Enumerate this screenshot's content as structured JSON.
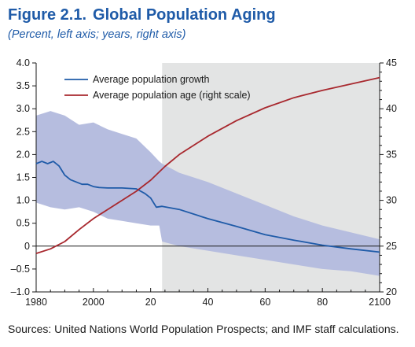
{
  "figure": {
    "label": "Figure 2.1.",
    "title": "Global Population Aging",
    "subtitle": "(Percent, left axis; years, right axis)",
    "source": "Sources: United Nations World Population Prospects; and IMF staff calculations."
  },
  "chart_data": {
    "type": "line",
    "x_ticks": [
      1980,
      2000,
      2020,
      2040,
      2060,
      2080,
      2100
    ],
    "x_tick_labels": [
      "1980",
      "2000",
      "20",
      "40",
      "60",
      "80",
      "2100"
    ],
    "xlim": [
      1980,
      2100
    ],
    "y_left": {
      "lim": [
        -1.0,
        4.0
      ],
      "ticks": [
        -1.0,
        -0.5,
        0,
        0.5,
        1.0,
        1.5,
        2.0,
        2.5,
        3.0,
        3.5,
        4.0
      ],
      "tick_labels": [
        "–1.0",
        "–0.5",
        "0",
        "0.5",
        "1.0",
        "1.5",
        "2.0",
        "2.5",
        "3.0",
        "3.5",
        "4.0"
      ]
    },
    "y_right": {
      "lim": [
        20,
        45
      ],
      "ticks": [
        20,
        25,
        30,
        35,
        40,
        45
      ],
      "tick_labels": [
        "20",
        "25",
        "30",
        "35",
        "40",
        "45"
      ]
    },
    "projection_shading": {
      "x_start": 2024,
      "x_end": 2100,
      "color": "#e3e4e4"
    },
    "zero_line": true,
    "legend_position": "top-left",
    "band": {
      "color": "#b6bddf",
      "x": [
        1980,
        1985,
        1990,
        1995,
        2000,
        2005,
        2010,
        2015,
        2020,
        2023,
        2024,
        2030,
        2040,
        2050,
        2060,
        2070,
        2080,
        2090,
        2100
      ],
      "upper": [
        2.85,
        2.95,
        2.85,
        2.65,
        2.7,
        2.55,
        2.45,
        2.35,
        2.05,
        1.85,
        1.8,
        1.6,
        1.4,
        1.15,
        0.9,
        0.65,
        0.45,
        0.3,
        0.15
      ],
      "lower": [
        0.95,
        0.85,
        0.8,
        0.85,
        0.75,
        0.6,
        0.55,
        0.5,
        0.45,
        0.45,
        0.1,
        0.0,
        -0.1,
        -0.2,
        -0.3,
        -0.4,
        -0.5,
        -0.55,
        -0.65
      ]
    },
    "series": [
      {
        "name": "Average population growth",
        "axis": "left",
        "color": "#1f5ba8",
        "x": [
          1980,
          1982,
          1984,
          1986,
          1988,
          1990,
          1992,
          1994,
          1996,
          1998,
          2000,
          2002,
          2005,
          2010,
          2015,
          2018,
          2020,
          2022,
          2024,
          2030,
          2040,
          2050,
          2060,
          2070,
          2080,
          2090,
          2100
        ],
        "values": [
          1.8,
          1.85,
          1.8,
          1.85,
          1.75,
          1.55,
          1.45,
          1.4,
          1.35,
          1.35,
          1.3,
          1.28,
          1.27,
          1.27,
          1.25,
          1.15,
          1.05,
          0.85,
          0.87,
          0.8,
          0.6,
          0.43,
          0.25,
          0.13,
          0.02,
          -0.06,
          -0.13
        ]
      },
      {
        "name": "Average population age (right scale)",
        "axis": "right",
        "color": "#a8282e",
        "x": [
          1980,
          1985,
          1990,
          1995,
          2000,
          2005,
          2010,
          2015,
          2020,
          2025,
          2030,
          2040,
          2050,
          2060,
          2070,
          2080,
          2090,
          2100
        ],
        "values": [
          24.2,
          24.7,
          25.5,
          26.8,
          28.0,
          29.0,
          30.0,
          31.0,
          32.2,
          33.7,
          35.0,
          37.0,
          38.7,
          40.1,
          41.2,
          42.0,
          42.7,
          43.4
        ]
      }
    ]
  }
}
